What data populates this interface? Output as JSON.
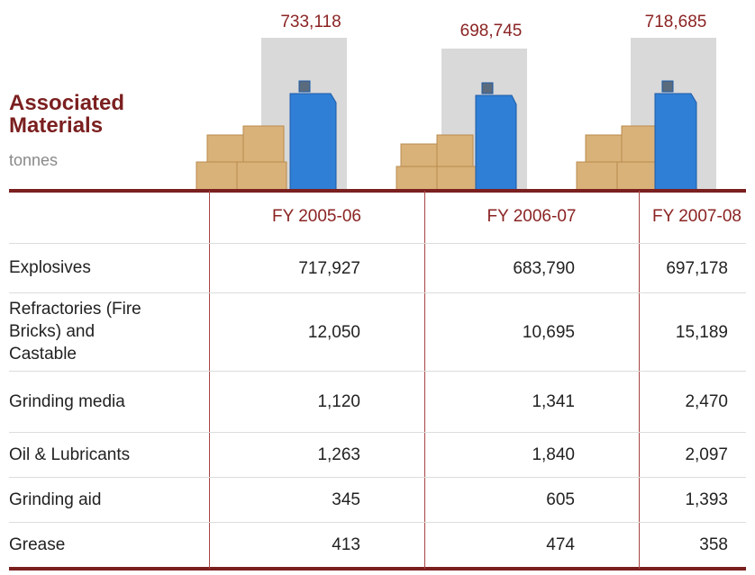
{
  "header": {
    "title": "Associated Materials",
    "unit": "tonnes"
  },
  "totals": [
    "733,118",
    "698,745",
    "718,685"
  ],
  "table": {
    "columns": [
      "FY 2005-06",
      "FY 2006-07",
      "FY 2007-08"
    ],
    "rows": [
      [
        "Explosives",
        "717,927",
        "683,790",
        "697,178"
      ],
      [
        "Refractories (Fire Bricks) and Castable",
        "12,050",
        "10,695",
        "15,189"
      ],
      [
        "Grinding media",
        "1,120",
        "1,341",
        "2,470"
      ],
      [
        "Oil & Lubricants",
        "1,263",
        "1,840",
        "2,097"
      ],
      [
        "Grinding aid",
        "345",
        "605",
        "1,393"
      ],
      [
        "Grease",
        "413",
        "474",
        "358"
      ]
    ]
  }
}
